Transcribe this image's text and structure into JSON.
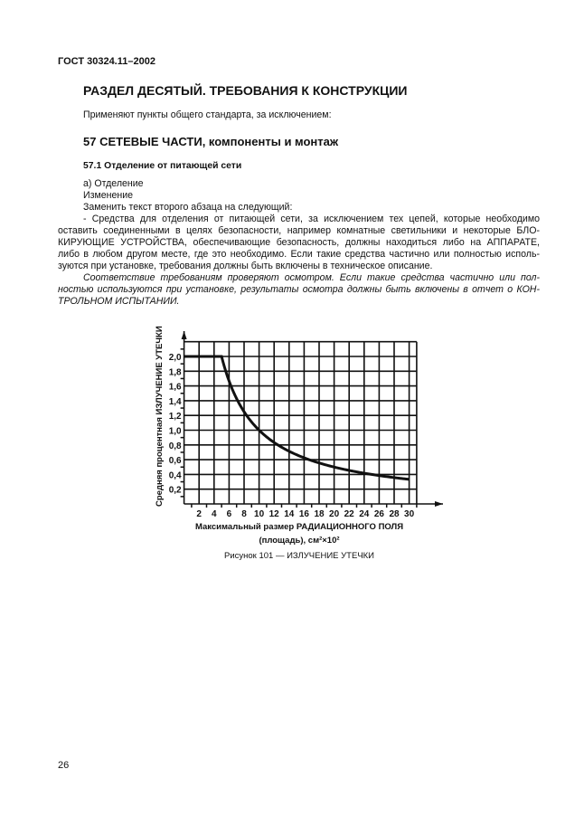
{
  "header": "ГОСТ 30324.11–2002",
  "section_title": "РАЗДЕЛ ДЕСЯТЫЙ. ТРЕБОВАНИЯ К КОНСТРУКЦИИ",
  "intro": "Применяют пункты общего стандарта, за исключением:",
  "heading_57": "57 СЕТЕВЫЕ ЧАСТИ, компоненты и монтаж",
  "heading_57_1": "57.1 Отделение от питающей сети",
  "lines": [
    "а) Отделение",
    "Изменение",
    "Заменить текст второго абзаца на следующий:",
    "- Средства для отделения от питающей сети, за исключением тех цепей, которые необходимо",
    "оставить соединенными в целях безопасности, например комнатные светильники и некоторые БЛО-",
    "КИРУЮЩИЕ УСТРОЙСТВА, обеспечивающие безопасность, должны находиться либо на АППАРАТЕ,",
    "либо в любом другом месте, где это необходимо. Если такие средства частично или полностью исполь-",
    "зуются при установке, требования должны быть включены в техническое описание.",
    "Соответствие требованиям проверяют осмотром. Если такие средства частично или пол-",
    "ностью используются при установке, результаты осмотра должны быть включены в отчет о КОН-",
    "ТРОЛЬНОМ ИСПЫТАНИИ."
  ],
  "figure_caption": "Рисунок 101 — ИЗЛУЧЕНИЕ УТЕЧКИ",
  "page_number": "26",
  "chart_data": {
    "type": "line",
    "ylabel": "Средняя процентная ИЗЛУЧЕНИЕ УТЕЧКИ",
    "xlabel_line1": "Максимальный размер РАДИАЦИОННОГО ПОЛЯ",
    "xlabel_line2": "(площадь), см²×10²",
    "x_ticks": [
      "2",
      "4",
      "6",
      "8",
      "10",
      "12",
      "14",
      "16",
      "18",
      "20",
      "22",
      "24",
      "26",
      "28",
      "30"
    ],
    "y_ticks": [
      "0,2",
      "0,4",
      "0,6",
      "0,8",
      "1,0",
      "1,2",
      "1,4",
      "1,6",
      "1,8",
      "2,0"
    ],
    "xlim": [
      0,
      31
    ],
    "ylim": [
      0,
      2.2
    ],
    "grid": true,
    "x": [
      0,
      5,
      6,
      8,
      10,
      12,
      14,
      16,
      18,
      20,
      22,
      24,
      26,
      28,
      30
    ],
    "y": [
      2.0,
      2.0,
      1.6,
      1.2,
      1.0,
      0.82,
      0.7,
      0.6,
      0.53,
      0.48,
      0.44,
      0.41,
      0.38,
      0.36,
      0.33
    ]
  }
}
